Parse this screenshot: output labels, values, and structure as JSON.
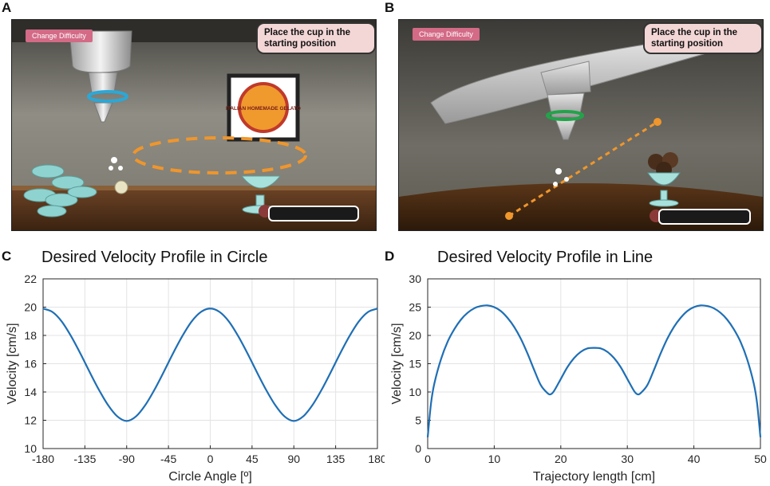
{
  "panels": {
    "A": {
      "letter": "A",
      "difficulty_button": "Change Difficulty",
      "instruction": "Place the cup in the starting position",
      "poster_text": "ITALIAN HOMEMADE GELATO"
    },
    "B": {
      "letter": "B",
      "difficulty_button": "Change Difficulty",
      "instruction": "Place the cup in the starting position"
    },
    "C": {
      "letter": "C"
    },
    "D": {
      "letter": "D"
    }
  },
  "colors": {
    "line": "#1f6fb5",
    "trajectory": "#f0962c",
    "button": "#d36a86",
    "instruction_bg": "#f3d6d6"
  },
  "icons": [
    "robot-handle-icon",
    "ring-icon",
    "cup-icon",
    "sundae-icon",
    "sparkle-icon"
  ],
  "chart_data": [
    {
      "type": "line",
      "title": "Desired Velocity Profile in Circle",
      "xlabel": "Circle Angle [º]",
      "ylabel": "Velocity [cm/s]",
      "xlim": [
        -180,
        180
      ],
      "ylim": [
        10,
        22
      ],
      "xticks": [
        -180,
        -135,
        -90,
        -45,
        0,
        45,
        90,
        135,
        180
      ],
      "yticks": [
        10,
        12,
        14,
        16,
        18,
        20,
        22
      ],
      "grid": true,
      "x": [
        -180,
        -170,
        -160,
        -150,
        -140,
        -130,
        -120,
        -110,
        -100,
        -90,
        -80,
        -70,
        -60,
        -50,
        -40,
        -30,
        -20,
        -10,
        0,
        10,
        20,
        30,
        40,
        50,
        60,
        70,
        80,
        90,
        100,
        110,
        120,
        130,
        140,
        150,
        160,
        170,
        180
      ],
      "y": [
        19.9,
        19.66,
        18.99,
        17.96,
        16.74,
        15.43,
        14.17,
        13.07,
        12.27,
        11.95,
        12.27,
        13.07,
        14.17,
        15.43,
        16.74,
        17.96,
        18.99,
        19.66,
        19.9,
        19.66,
        18.99,
        17.96,
        16.74,
        15.43,
        14.17,
        13.07,
        12.27,
        11.95,
        12.27,
        13.07,
        14.17,
        15.43,
        16.74,
        17.96,
        18.99,
        19.66,
        19.9
      ]
    },
    {
      "type": "line",
      "title": "Desired Velocity Profile in Line",
      "xlabel": "Trajectory length [cm]",
      "ylabel": "Velocity [cm/s]",
      "xlim": [
        0,
        50
      ],
      "ylim": [
        0,
        30
      ],
      "xticks": [
        0,
        10,
        20,
        30,
        40,
        50
      ],
      "yticks": [
        0,
        5,
        10,
        15,
        20,
        25,
        30
      ],
      "grid": true,
      "x": [
        0,
        0.5,
        1,
        2,
        3,
        4,
        5,
        6,
        7,
        8,
        9,
        10,
        11,
        12,
        13,
        14,
        15,
        16,
        17,
        18,
        18.5,
        19,
        20,
        21,
        22,
        23,
        24,
        25,
        26,
        27,
        28,
        29,
        30,
        31,
        31.5,
        32,
        33,
        34,
        35,
        36,
        37,
        38,
        39,
        40,
        41,
        42,
        43,
        44,
        45,
        46,
        47,
        48,
        49,
        49.5,
        50
      ],
      "y": [
        2,
        8,
        11.5,
        15.8,
        18.9,
        21.1,
        22.8,
        24.0,
        24.8,
        25.2,
        25.3,
        25.0,
        24.3,
        23.1,
        21.5,
        19.4,
        16.8,
        13.9,
        11.2,
        9.8,
        9.6,
        10.2,
        12.3,
        14.4,
        16.0,
        17.1,
        17.7,
        17.8,
        17.7,
        17.1,
        16.0,
        14.4,
        12.3,
        10.2,
        9.6,
        9.8,
        11.2,
        13.9,
        16.8,
        19.4,
        21.5,
        23.1,
        24.3,
        25.0,
        25.3,
        25.2,
        24.8,
        24.0,
        22.8,
        21.1,
        18.9,
        15.8,
        11.5,
        8,
        2
      ]
    }
  ]
}
